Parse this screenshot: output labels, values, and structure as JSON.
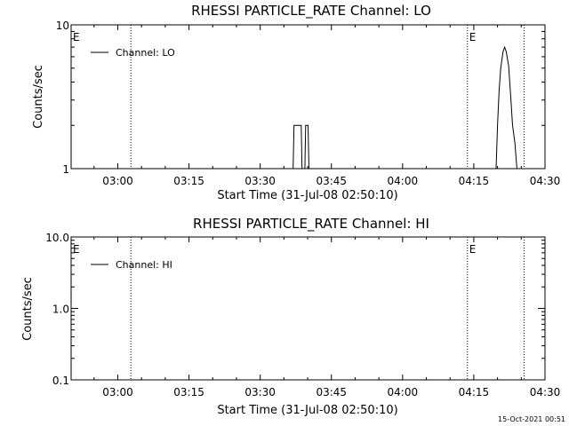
{
  "footer": {
    "timestamp": "15-Oct-2021 00:51"
  },
  "chart_data": [
    {
      "type": "line",
      "title": "RHESSI PARTICLE_RATE Channel: LO",
      "xlabel": "Start Time (31-Jul-08 02:50:10)",
      "ylabel": "Counts/sec",
      "y_scale": "log",
      "ylim": [
        1,
        10
      ],
      "xlim": [
        "02:50:10",
        "04:30:00"
      ],
      "x_ticks": [
        "03:00",
        "03:15",
        "03:30",
        "03:45",
        "04:00",
        "04:15",
        "04:30"
      ],
      "y_ticks": [
        "1",
        "10"
      ],
      "legend": {
        "entries": [
          "Channel: LO"
        ],
        "position": "top-left"
      },
      "markers": [
        {
          "label": "E",
          "time": "02:50:10"
        },
        {
          "label": "",
          "time": "03:02:45"
        },
        {
          "label": "E",
          "time": "04:13:40"
        },
        {
          "label": "",
          "time": "04:25:35"
        }
      ],
      "series": [
        {
          "name": "Channel: LO",
          "points": [
            [
              "03:36:56",
              1
            ],
            [
              "03:37:07",
              2
            ],
            [
              "03:38:38",
              2
            ],
            [
              "03:38:49",
              1
            ],
            [
              "03:39:24",
              1
            ],
            [
              "03:39:35",
              2
            ],
            [
              "03:40:05",
              2
            ],
            [
              "03:40:16",
              1
            ],
            [
              "04:19:42",
              1
            ],
            [
              "04:20:00",
              2
            ],
            [
              "04:20:20",
              3.5
            ],
            [
              "04:20:40",
              5
            ],
            [
              "04:21:10",
              6.5
            ],
            [
              "04:21:30",
              7
            ],
            [
              "04:21:50",
              6.5
            ],
            [
              "04:22:20",
              5.2
            ],
            [
              "04:22:50",
              3
            ],
            [
              "04:23:10",
              2
            ],
            [
              "04:23:40",
              1.5
            ],
            [
              "04:24:05",
              1
            ]
          ]
        }
      ]
    },
    {
      "type": "line",
      "title": "RHESSI PARTICLE_RATE Channel: HI",
      "xlabel": "Start Time (31-Jul-08 02:50:10)",
      "ylabel": "Counts/sec",
      "y_scale": "log",
      "ylim": [
        0.1,
        10
      ],
      "xlim": [
        "02:50:10",
        "04:30:00"
      ],
      "x_ticks": [
        "03:00",
        "03:15",
        "03:30",
        "03:45",
        "04:00",
        "04:15",
        "04:30"
      ],
      "y_ticks": [
        "0.1",
        "1.0",
        "10.0"
      ],
      "legend": {
        "entries": [
          "Channel: HI"
        ],
        "position": "top-left"
      },
      "markers": [
        {
          "label": "E",
          "time": "02:50:10"
        },
        {
          "label": "",
          "time": "03:02:45"
        },
        {
          "label": "E",
          "time": "04:13:40"
        },
        {
          "label": "",
          "time": "04:25:35"
        }
      ],
      "series": [
        {
          "name": "Channel: HI",
          "points": []
        }
      ]
    }
  ]
}
